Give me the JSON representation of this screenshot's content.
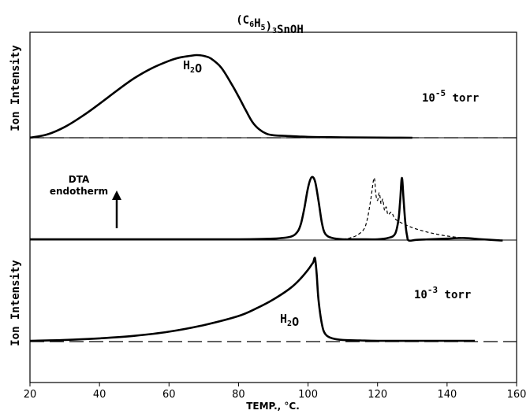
{
  "chart_data": [
    {
      "type": "line",
      "panel": "top",
      "title": "(C6H5)3SnOH",
      "ylabel": "Ion Intensity",
      "condition": "10-5 torr",
      "annotation": "H2O",
      "baseline": "dashed",
      "series": [
        {
          "x": [
            20,
            25,
            30,
            35,
            40,
            45,
            50,
            55,
            60,
            63,
            66,
            68,
            70,
            72,
            75,
            78,
            80,
            82,
            84,
            86,
            88,
            90,
            95,
            100,
            110,
            120,
            130
          ],
          "y": [
            0.0,
            0.04,
            0.13,
            0.26,
            0.41,
            0.57,
            0.72,
            0.84,
            0.93,
            0.97,
            0.99,
            1.0,
            0.99,
            0.96,
            0.85,
            0.65,
            0.5,
            0.34,
            0.19,
            0.1,
            0.05,
            0.03,
            0.02,
            0.01,
            0.005,
            0.002,
            0.0
          ]
        }
      ]
    },
    {
      "type": "line",
      "panel": "middle",
      "label_lines": [
        "DTA",
        "endotherm"
      ],
      "series": [
        {
          "style": "solid",
          "x": [
            20,
            40,
            60,
            80,
            90,
            95,
            97,
            98,
            99,
            100,
            101,
            102,
            103,
            104,
            105,
            107,
            110,
            115,
            120,
            123,
            125,
            126,
            126.5,
            127,
            127.5,
            128,
            128.5,
            129,
            131,
            135,
            140,
            145,
            150,
            156
          ],
          "y": [
            0.0,
            0.0,
            0.0,
            0.0,
            0.01,
            0.04,
            0.12,
            0.25,
            0.5,
            0.8,
            0.96,
            0.9,
            0.6,
            0.25,
            0.08,
            0.02,
            0.0,
            0.0,
            0.0,
            0.02,
            0.08,
            0.3,
            0.6,
            0.95,
            0.6,
            0.25,
            0.05,
            -0.02,
            -0.01,
            0.0,
            0.01,
            0.02,
            0.0,
            -0.02
          ]
        },
        {
          "style": "dashed",
          "x": [
            110,
            112,
            114,
            116,
            117,
            118,
            119,
            119.5,
            120,
            120.5,
            121,
            121.5,
            122,
            122.5,
            123,
            124,
            125,
            127,
            130,
            133,
            136,
            140,
            145,
            150
          ],
          "y": [
            0.0,
            0.02,
            0.06,
            0.15,
            0.3,
            0.6,
            0.95,
            0.7,
            0.6,
            0.72,
            0.55,
            0.62,
            0.45,
            0.5,
            0.38,
            0.42,
            0.32,
            0.25,
            0.18,
            0.13,
            0.09,
            0.05,
            0.02,
            0.0
          ]
        }
      ]
    },
    {
      "type": "line",
      "panel": "bottom",
      "ylabel": "Ion Intensity",
      "condition": "10-3 torr",
      "annotation": "H2O",
      "baseline": "dashed",
      "xlabel": "TEMP., °C.",
      "xticks": [
        20,
        40,
        60,
        80,
        100,
        120,
        140,
        160
      ],
      "xlim": [
        20,
        160
      ],
      "series": [
        {
          "x": [
            20,
            30,
            40,
            50,
            60,
            70,
            80,
            85,
            90,
            95,
            98,
            100,
            101,
            101.5,
            102,
            102.5,
            103,
            104,
            105,
            107,
            110,
            115,
            120,
            130,
            140,
            148
          ],
          "y": [
            0.0,
            0.01,
            0.03,
            0.06,
            0.11,
            0.19,
            0.3,
            0.39,
            0.5,
            0.64,
            0.76,
            0.86,
            0.92,
            0.95,
            1.0,
            0.8,
            0.5,
            0.2,
            0.08,
            0.03,
            0.01,
            0.005,
            0.0,
            0.0,
            0.0,
            0.0
          ]
        }
      ]
    }
  ]
}
